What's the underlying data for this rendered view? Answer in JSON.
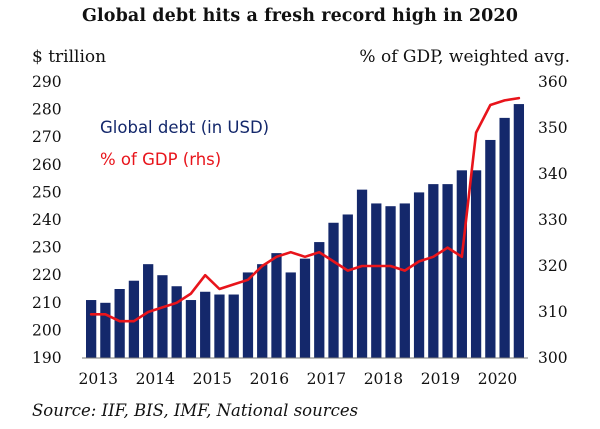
{
  "chart_data": {
    "type": "bar",
    "title": "Global debt hits a fresh record high in 2020",
    "ylabel": "$ trillion",
    "ylabel_right": "% of GDP, weighted avg.",
    "source": "Source: IIF, BIS, IMF, National sources",
    "ylim": [
      190,
      290
    ],
    "y_ticks": [
      "190",
      "200",
      "210",
      "220",
      "230",
      "240",
      "250",
      "260",
      "270",
      "280",
      "290"
    ],
    "ylim_right": [
      300,
      360
    ],
    "y_ticks_right": [
      "300",
      "310",
      "320",
      "330",
      "340",
      "350",
      "360"
    ],
    "x_tick_labels": [
      "2013",
      "2014",
      "2015",
      "2016",
      "2017",
      "2018",
      "2019",
      "2020"
    ],
    "series": [
      {
        "name": "Global debt (in USD)",
        "type": "bar",
        "axis": "left",
        "color": "#14286b",
        "values": [
          211,
          210,
          215,
          218,
          224,
          220,
          216,
          211,
          214,
          213,
          213,
          221,
          224,
          228,
          221,
          226,
          232,
          239,
          242,
          251,
          246,
          245,
          246,
          250,
          253,
          253,
          258,
          258,
          269,
          277,
          282
        ]
      },
      {
        "name": "% of GDP (rhs)",
        "type": "line",
        "axis": "right",
        "color": "#e8141b",
        "values": [
          309.5,
          309.5,
          308,
          308,
          310,
          311,
          312,
          314,
          318,
          315,
          316,
          317,
          320,
          322,
          323,
          322,
          323,
          321,
          319,
          320,
          320,
          320,
          319,
          321,
          322,
          324,
          322,
          349,
          355,
          356,
          356.5
        ]
      }
    ],
    "legend": [
      {
        "label": "Global debt (in USD)",
        "color": "#14286b"
      },
      {
        "label": "% of GDP (rhs)",
        "color": "#e8141b"
      }
    ]
  }
}
